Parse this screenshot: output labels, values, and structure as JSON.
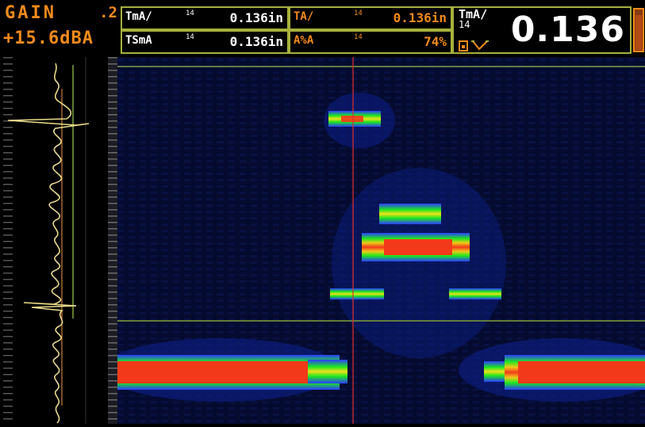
{
  "gain": {
    "label": "GAIN",
    "step": ".2",
    "value": "+15.6dBA"
  },
  "readings": [
    {
      "label": "TmA/",
      "gate": "14",
      "value": "0.136in",
      "style": "white"
    },
    {
      "label": "TA/",
      "gate": "14",
      "value": "0.136in",
      "style": "orange"
    },
    {
      "label": "TSmA",
      "gate": "14",
      "value": "0.136in",
      "style": "white"
    },
    {
      "label": "A%A",
      "gate": "14",
      "value": "74%",
      "style": "orange"
    }
  ],
  "big_reading": {
    "label": "TmA/",
    "gate": "14",
    "value": "0.136"
  },
  "battery": {
    "level": 0.85
  },
  "colors": {
    "accent": "#f28a1c",
    "frame": "#a7b13c",
    "gate_line": "#7fa23a",
    "cursor_line": "#e0302a",
    "waveform": "#e8d98a"
  }
}
